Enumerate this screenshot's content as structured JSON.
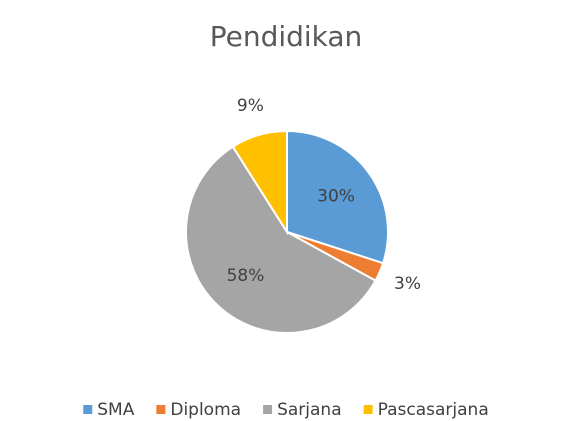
{
  "chart_data": {
    "type": "pie",
    "title": "Pendidikan",
    "categories": [
      "SMA",
      "Diploma",
      "Sarjana",
      "Pascasarjana"
    ],
    "values": [
      30,
      3,
      58,
      9
    ],
    "value_labels": [
      "30%",
      "3%",
      "58%",
      "9%"
    ],
    "colors": [
      "#5b9bd5",
      "#ed7d31",
      "#a5a5a5",
      "#ffc000"
    ],
    "legend": "bottom"
  }
}
